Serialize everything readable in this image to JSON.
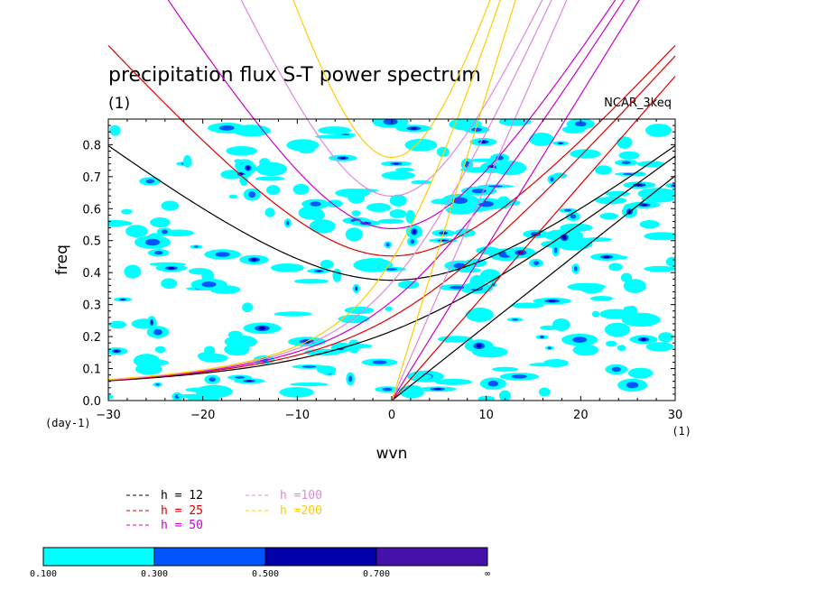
{
  "chart_data": {
    "type": "contour",
    "title": "precipitation flux S-T power spectrum",
    "subtitle": "(1)",
    "dataset_label": "NCAR_3keq",
    "xlabel": "wvn",
    "ylabel": "freq",
    "x_unit": "(1)",
    "y_unit": "(day-1)",
    "xlim": [
      -30,
      30
    ],
    "ylim": [
      0,
      0.88
    ],
    "x_ticks": [
      -30,
      -20,
      -10,
      0,
      10,
      20,
      30
    ],
    "x_tick_labels": [
      "−30",
      "−20",
      "−10",
      "0",
      "10",
      "20",
      "30"
    ],
    "y_ticks": [
      0.0,
      0.1,
      0.2,
      0.3,
      0.4,
      0.5,
      0.6,
      0.7,
      0.8
    ],
    "y_tick_labels": [
      "0.0",
      "0.1",
      "0.2",
      "0.3",
      "0.4",
      "0.5",
      "0.6",
      "0.7",
      "0.8"
    ],
    "dispersion_curves": [
      {
        "name": "h = 12",
        "h": 12,
        "color": "#000000"
      },
      {
        "name": "h = 25",
        "h": 25,
        "color": "#dd0000"
      },
      {
        "name": "h = 50",
        "h": 50,
        "color": "#cc00cc"
      },
      {
        "name": "h =100",
        "h": 100,
        "color": "#dd88dd"
      },
      {
        "name": "h =200",
        "h": 200,
        "color": "#ffcc00"
      }
    ],
    "contour_levels": [
      0.1,
      0.3,
      0.5,
      0.7
    ],
    "colorbar": {
      "labels": [
        "0.100",
        "0.300",
        "0.500",
        "0.700",
        "∞"
      ],
      "colors": [
        "#00ffff",
        "#0055ff",
        "#0000aa",
        "#4411aa"
      ]
    }
  }
}
